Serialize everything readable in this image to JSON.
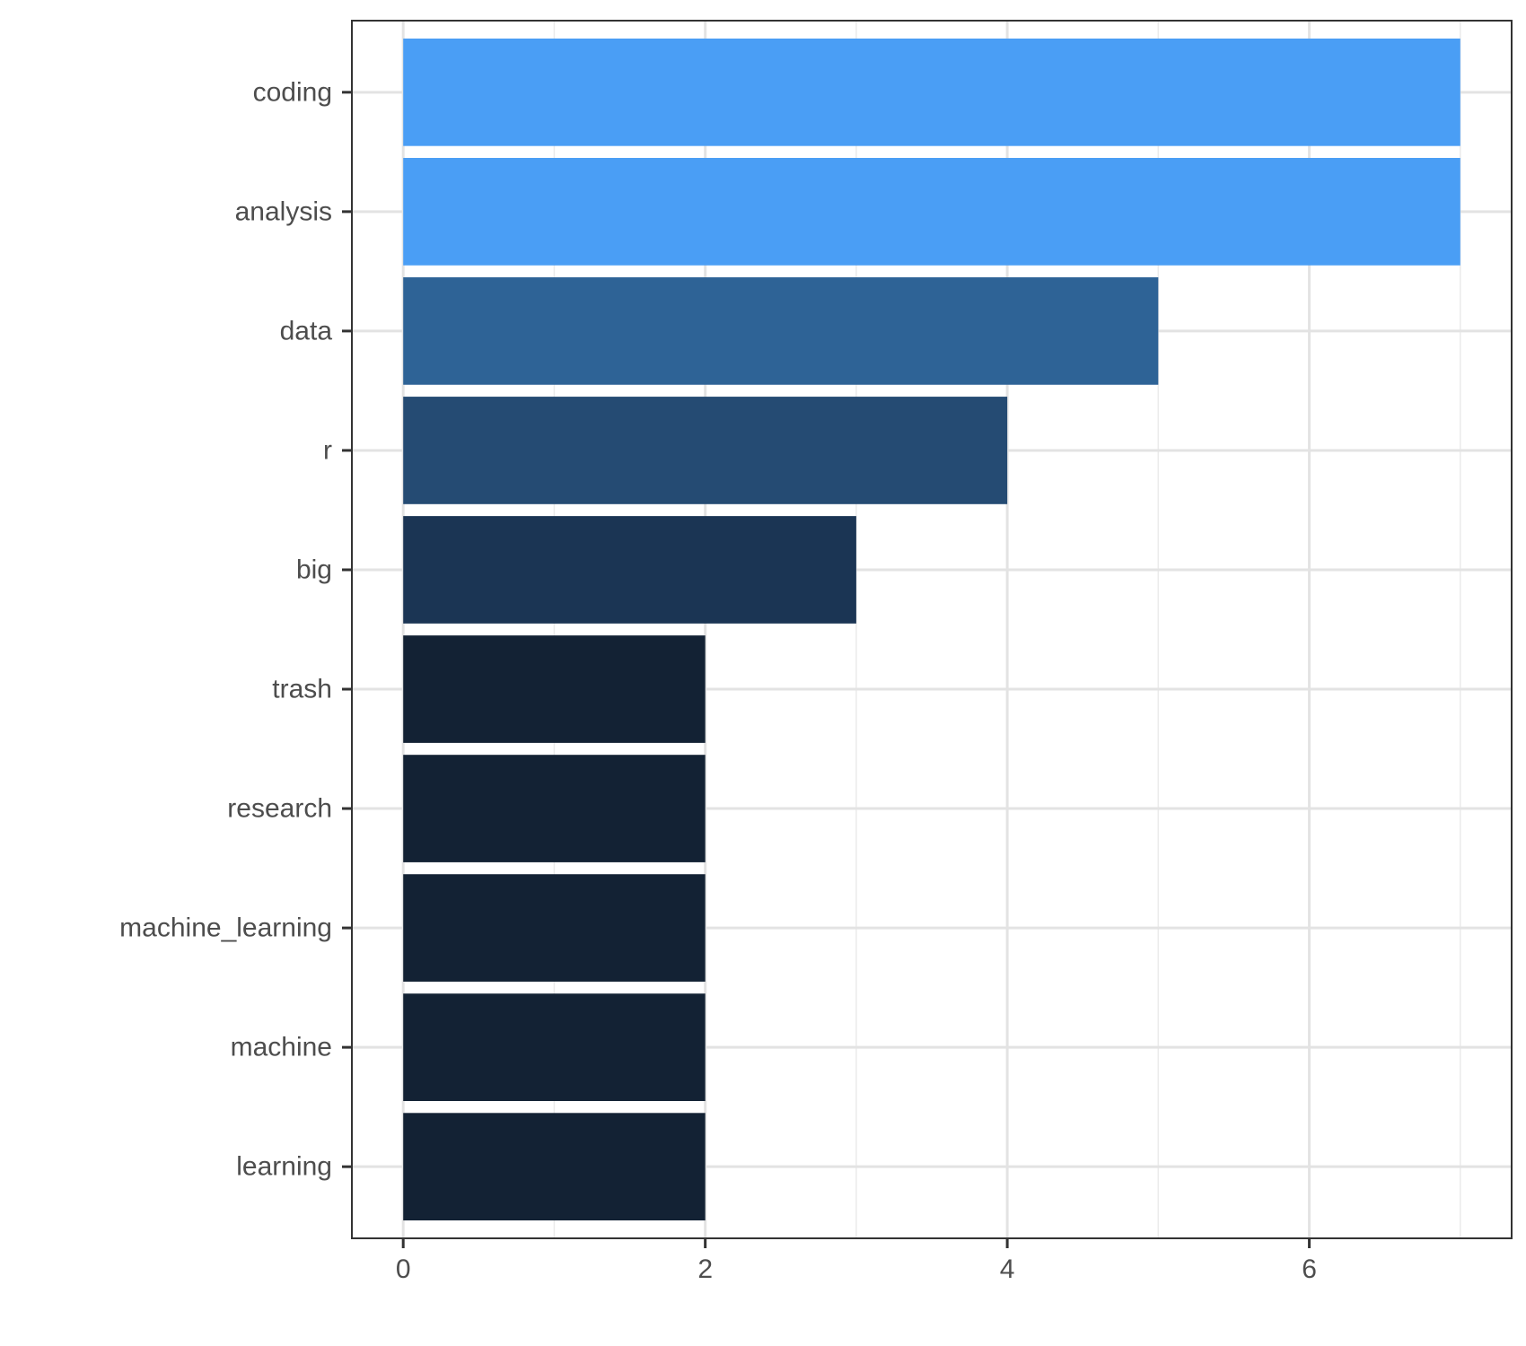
{
  "chart_data": {
    "type": "bar",
    "orientation": "horizontal",
    "categories": [
      "coding",
      "analysis",
      "data",
      "r",
      "big",
      "trash",
      "research",
      "machine_learning",
      "machine",
      "learning"
    ],
    "values": [
      7,
      7,
      5,
      4,
      3,
      2,
      2,
      2,
      2,
      2
    ],
    "bar_colors": [
      "#4a9ef5",
      "#4a9ef5",
      "#2e6396",
      "#254b73",
      "#1b3554",
      "#132234",
      "#132234",
      "#132234",
      "#132234",
      "#132234"
    ],
    "x_ticks": [
      "0",
      "2",
      "4",
      "6"
    ],
    "xlim": [
      -0.34,
      7.34
    ],
    "title": "",
    "xlabel": "",
    "ylabel": "",
    "grid": true,
    "legend": "none"
  }
}
